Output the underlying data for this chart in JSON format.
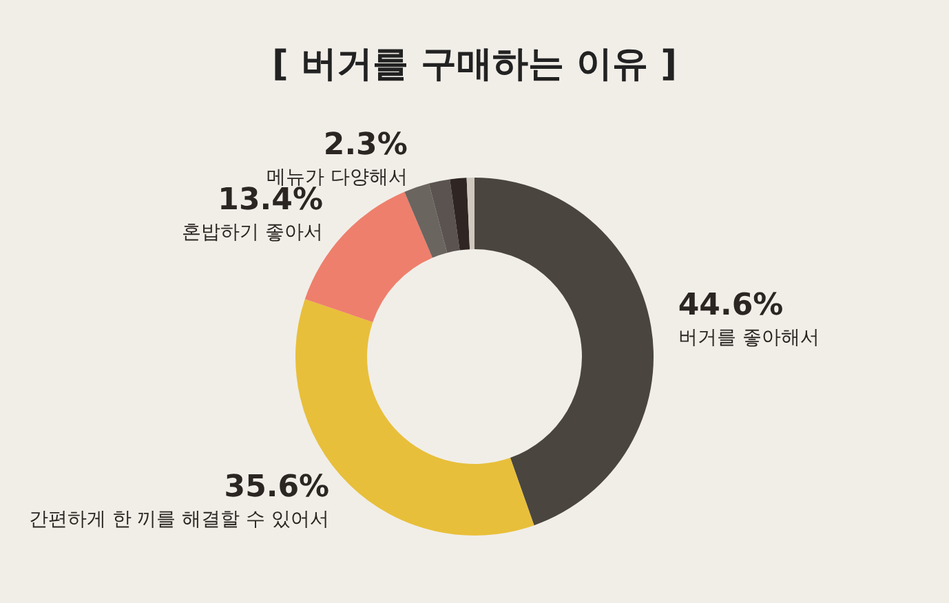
{
  "chart_data": {
    "type": "donut",
    "title": "[ 버거를 구매하는 이유 ]",
    "categories": [
      "버거를 좋아해서",
      "간편하게 한 끼를 해결할 수 있어서",
      "혼밥하기 좋아서",
      "메뉴가 다양해서",
      null,
      null,
      null
    ],
    "values": [
      44.6,
      35.6,
      13.4,
      2.3,
      1.9,
      1.5,
      0.7
    ],
    "value_labels": [
      "44.6%",
      "35.6%",
      "13.4%",
      "2.3%",
      null,
      null,
      null
    ],
    "colors": [
      "#4a463f",
      "#e8bf3a",
      "#ee7f6c",
      "#6b6560",
      "#5a5350",
      "#2f2624",
      "#cfc8bf"
    ],
    "legend": false
  }
}
